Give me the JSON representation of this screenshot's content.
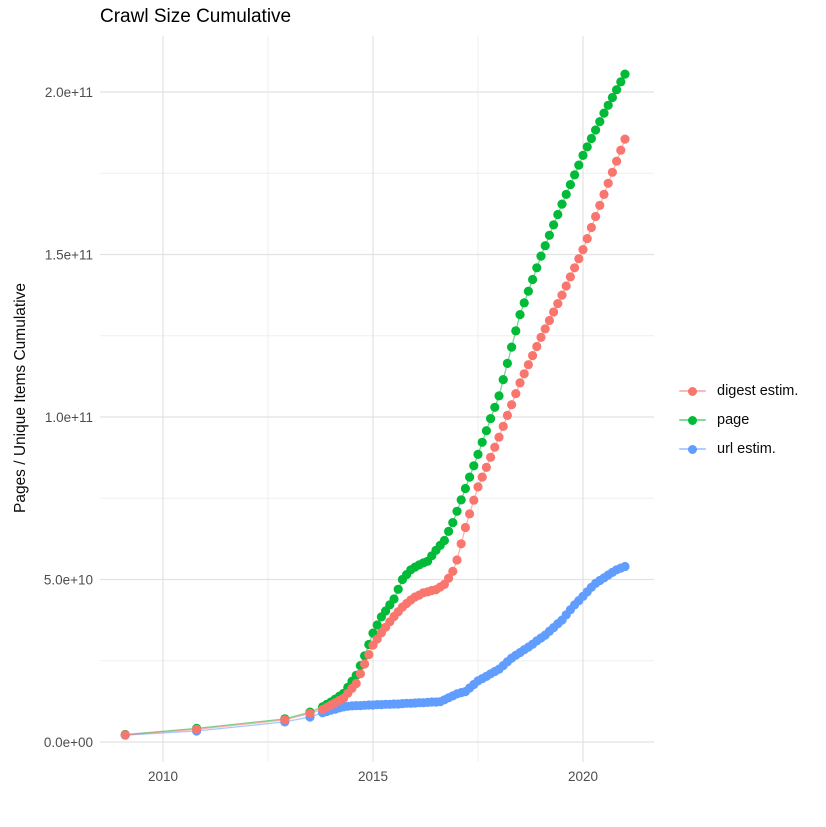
{
  "chart_data": {
    "type": "scatter",
    "title": "Crawl Size Cumulative",
    "xlabel": "",
    "ylabel": "Pages / Unique Items Cumulative",
    "x_ticks": [
      2010,
      2015,
      2020
    ],
    "x_tick_labels": [
      "2010",
      "2015",
      "2020"
    ],
    "x_minor_ticks": [
      2012.5,
      2017.5
    ],
    "xlim": [
      2008.5,
      2021.7
    ],
    "y_tick_labels": [
      "0.0e+00",
      "5.0e+10",
      "1.0e+11",
      "1.5e+11",
      "2.0e+11"
    ],
    "y_tick_values_billions": [
      0,
      50,
      100,
      150,
      200
    ],
    "y_minor_ticks_billions": [
      25,
      75,
      125,
      175
    ],
    "ylim_billions": [
      -6,
      217
    ],
    "unit": "billions (1e9) of pages / unique items",
    "grid": true,
    "legend_position": "right",
    "series": [
      {
        "name": "digest estim.",
        "color": "#F8766D",
        "points_year_billions": [
          [
            2009.1,
            2.2
          ],
          [
            2010.8,
            3.9
          ],
          [
            2012.9,
            6.8
          ],
          [
            2013.5,
            8.8
          ],
          [
            2013.8,
            10.0
          ],
          [
            2013.9,
            10.7
          ],
          [
            2014.0,
            11.4
          ],
          [
            2014.1,
            12.1
          ],
          [
            2014.2,
            12.8
          ],
          [
            2014.3,
            13.5
          ],
          [
            2014.4,
            15.0
          ],
          [
            2014.5,
            16.5
          ],
          [
            2014.6,
            18.0
          ],
          [
            2014.7,
            21.0
          ],
          [
            2014.8,
            24.0
          ],
          [
            2014.9,
            26.9
          ],
          [
            2015.0,
            29.8
          ],
          [
            2015.1,
            31.7
          ],
          [
            2015.2,
            33.6
          ],
          [
            2015.3,
            35.3
          ],
          [
            2015.4,
            37.0
          ],
          [
            2015.5,
            38.6
          ],
          [
            2015.6,
            40.1
          ],
          [
            2015.7,
            41.5
          ],
          [
            2015.8,
            42.6
          ],
          [
            2015.9,
            43.7
          ],
          [
            2016.0,
            44.6
          ],
          [
            2016.1,
            45.2
          ],
          [
            2016.2,
            45.9
          ],
          [
            2016.3,
            46.2
          ],
          [
            2016.4,
            46.6
          ],
          [
            2016.5,
            46.9
          ],
          [
            2016.6,
            47.7
          ],
          [
            2016.7,
            48.5
          ],
          [
            2016.8,
            50.4
          ],
          [
            2016.9,
            52.5
          ],
          [
            2017.0,
            56.0
          ],
          [
            2017.1,
            61.0
          ],
          [
            2017.2,
            66.0
          ],
          [
            2017.3,
            70.2
          ],
          [
            2017.4,
            74.4
          ],
          [
            2017.5,
            78.5
          ],
          [
            2017.6,
            81.5
          ],
          [
            2017.7,
            84.5
          ],
          [
            2017.8,
            87.6
          ],
          [
            2017.9,
            90.7
          ],
          [
            2018.0,
            93.8
          ],
          [
            2018.1,
            97.1
          ],
          [
            2018.2,
            100.5
          ],
          [
            2018.3,
            103.8
          ],
          [
            2018.4,
            107.2
          ],
          [
            2018.5,
            110.5
          ],
          [
            2018.6,
            113.3
          ],
          [
            2018.7,
            116.1
          ],
          [
            2018.8,
            118.9
          ],
          [
            2018.9,
            121.7
          ],
          [
            2019.0,
            124.5
          ],
          [
            2019.1,
            127.1
          ],
          [
            2019.2,
            129.7
          ],
          [
            2019.3,
            132.3
          ],
          [
            2019.4,
            134.9
          ],
          [
            2019.5,
            137.5
          ],
          [
            2019.6,
            140.3
          ],
          [
            2019.7,
            143.1
          ],
          [
            2019.8,
            145.9
          ],
          [
            2019.9,
            148.7
          ],
          [
            2020.0,
            151.5
          ],
          [
            2020.1,
            154.9
          ],
          [
            2020.2,
            158.3
          ],
          [
            2020.3,
            161.7
          ],
          [
            2020.4,
            165.1
          ],
          [
            2020.5,
            168.5
          ],
          [
            2020.6,
            171.9
          ],
          [
            2020.7,
            175.3
          ],
          [
            2020.8,
            178.7
          ],
          [
            2020.9,
            182.1
          ],
          [
            2021.0,
            185.5
          ]
        ]
      },
      {
        "name": "page",
        "color": "#00BA38",
        "points_year_billions": [
          [
            2009.1,
            2.3
          ],
          [
            2010.8,
            4.2
          ],
          [
            2012.9,
            7.1
          ],
          [
            2013.5,
            9.2
          ],
          [
            2013.8,
            10.8
          ],
          [
            2013.9,
            11.6
          ],
          [
            2014.0,
            12.3
          ],
          [
            2014.1,
            13.2
          ],
          [
            2014.2,
            14.1
          ],
          [
            2014.3,
            15.0
          ],
          [
            2014.4,
            16.8
          ],
          [
            2014.5,
            18.7
          ],
          [
            2014.6,
            20.5
          ],
          [
            2014.7,
            23.5
          ],
          [
            2014.8,
            26.5
          ],
          [
            2014.9,
            30.0
          ],
          [
            2015.0,
            33.5
          ],
          [
            2015.1,
            36.0
          ],
          [
            2015.2,
            38.5
          ],
          [
            2015.3,
            40.3
          ],
          [
            2015.4,
            42.2
          ],
          [
            2015.5,
            44.0
          ],
          [
            2015.6,
            47.0
          ],
          [
            2015.7,
            50.0
          ],
          [
            2015.8,
            51.5
          ],
          [
            2015.9,
            53.0
          ],
          [
            2016.0,
            53.8
          ],
          [
            2016.1,
            54.5
          ],
          [
            2016.2,
            55.1
          ],
          [
            2016.3,
            55.6
          ],
          [
            2016.4,
            57.3
          ],
          [
            2016.5,
            59.0
          ],
          [
            2016.6,
            60.5
          ],
          [
            2016.7,
            62.0
          ],
          [
            2016.8,
            64.8
          ],
          [
            2016.9,
            67.5
          ],
          [
            2017.0,
            71.0
          ],
          [
            2017.1,
            74.5
          ],
          [
            2017.2,
            78.0
          ],
          [
            2017.3,
            81.5
          ],
          [
            2017.4,
            85.0
          ],
          [
            2017.5,
            88.5
          ],
          [
            2017.6,
            92.2
          ],
          [
            2017.7,
            95.8
          ],
          [
            2017.8,
            99.5
          ],
          [
            2017.9,
            103.0
          ],
          [
            2018.0,
            106.5
          ],
          [
            2018.1,
            111.5
          ],
          [
            2018.2,
            116.5
          ],
          [
            2018.3,
            121.5
          ],
          [
            2018.4,
            126.5
          ],
          [
            2018.5,
            131.5
          ],
          [
            2018.6,
            135.1
          ],
          [
            2018.7,
            138.7
          ],
          [
            2018.8,
            142.3
          ],
          [
            2018.9,
            145.9
          ],
          [
            2019.0,
            149.5
          ],
          [
            2019.1,
            152.7
          ],
          [
            2019.2,
            155.9
          ],
          [
            2019.3,
            159.1
          ],
          [
            2019.4,
            162.3
          ],
          [
            2019.5,
            165.5
          ],
          [
            2019.6,
            168.5
          ],
          [
            2019.7,
            171.5
          ],
          [
            2019.8,
            174.5
          ],
          [
            2019.9,
            177.5
          ],
          [
            2020.0,
            180.5
          ],
          [
            2020.1,
            183.1
          ],
          [
            2020.2,
            185.7
          ],
          [
            2020.3,
            188.3
          ],
          [
            2020.4,
            190.9
          ],
          [
            2020.5,
            193.5
          ],
          [
            2020.6,
            195.9
          ],
          [
            2020.7,
            198.3
          ],
          [
            2020.8,
            200.7
          ],
          [
            2020.9,
            203.1
          ],
          [
            2021.0,
            205.5
          ]
        ]
      },
      {
        "name": "url estim.",
        "color": "#619CFF",
        "points_year_billions": [
          [
            2009.1,
            2.1
          ],
          [
            2010.8,
            3.4
          ],
          [
            2012.9,
            6.2
          ],
          [
            2013.5,
            7.7
          ],
          [
            2013.8,
            9.0
          ],
          [
            2013.9,
            9.4
          ],
          [
            2014.0,
            9.8
          ],
          [
            2014.1,
            10.1
          ],
          [
            2014.2,
            10.5
          ],
          [
            2014.3,
            10.8
          ],
          [
            2014.4,
            11.0
          ],
          [
            2014.5,
            11.1
          ],
          [
            2014.6,
            11.2
          ],
          [
            2014.7,
            11.2
          ],
          [
            2014.8,
            11.3
          ],
          [
            2014.9,
            11.4
          ],
          [
            2015.0,
            11.4
          ],
          [
            2015.1,
            11.5
          ],
          [
            2015.2,
            11.5
          ],
          [
            2015.3,
            11.6
          ],
          [
            2015.4,
            11.6
          ],
          [
            2015.5,
            11.7
          ],
          [
            2015.6,
            11.7
          ],
          [
            2015.7,
            11.8
          ],
          [
            2015.8,
            11.9
          ],
          [
            2015.9,
            11.9
          ],
          [
            2016.0,
            12.0
          ],
          [
            2016.1,
            12.1
          ],
          [
            2016.2,
            12.1
          ],
          [
            2016.3,
            12.2
          ],
          [
            2016.4,
            12.3
          ],
          [
            2016.5,
            12.3
          ],
          [
            2016.6,
            12.4
          ],
          [
            2016.7,
            13.0
          ],
          [
            2016.8,
            13.6
          ],
          [
            2016.9,
            14.2
          ],
          [
            2017.0,
            14.8
          ],
          [
            2017.1,
            15.2
          ],
          [
            2017.2,
            15.5
          ],
          [
            2017.3,
            16.6
          ],
          [
            2017.4,
            17.7
          ],
          [
            2017.5,
            18.8
          ],
          [
            2017.6,
            19.5
          ],
          [
            2017.7,
            20.2
          ],
          [
            2017.8,
            21.0
          ],
          [
            2017.9,
            21.7
          ],
          [
            2018.0,
            22.4
          ],
          [
            2018.1,
            23.5
          ],
          [
            2018.2,
            24.7
          ],
          [
            2018.3,
            25.8
          ],
          [
            2018.4,
            26.7
          ],
          [
            2018.5,
            27.5
          ],
          [
            2018.6,
            28.4
          ],
          [
            2018.7,
            29.2
          ],
          [
            2018.8,
            30.1
          ],
          [
            2018.9,
            31.1
          ],
          [
            2019.0,
            32.0
          ],
          [
            2019.1,
            32.9
          ],
          [
            2019.2,
            34.1
          ],
          [
            2019.3,
            35.2
          ],
          [
            2019.4,
            36.4
          ],
          [
            2019.5,
            37.5
          ],
          [
            2019.6,
            39.1
          ],
          [
            2019.7,
            40.7
          ],
          [
            2019.8,
            42.2
          ],
          [
            2019.9,
            43.5
          ],
          [
            2020.0,
            44.8
          ],
          [
            2020.1,
            46.2
          ],
          [
            2020.2,
            47.6
          ],
          [
            2020.3,
            48.8
          ],
          [
            2020.4,
            49.7
          ],
          [
            2020.5,
            50.5
          ],
          [
            2020.6,
            51.4
          ],
          [
            2020.7,
            52.2
          ],
          [
            2020.8,
            53.0
          ],
          [
            2020.9,
            53.5
          ],
          [
            2021.0,
            54.0
          ]
        ]
      }
    ],
    "colors": {
      "grid_major": "#e2e2e2",
      "grid_minor": "#efefef",
      "axis_text": "#4d4d4d",
      "background": "#ffffff"
    }
  }
}
